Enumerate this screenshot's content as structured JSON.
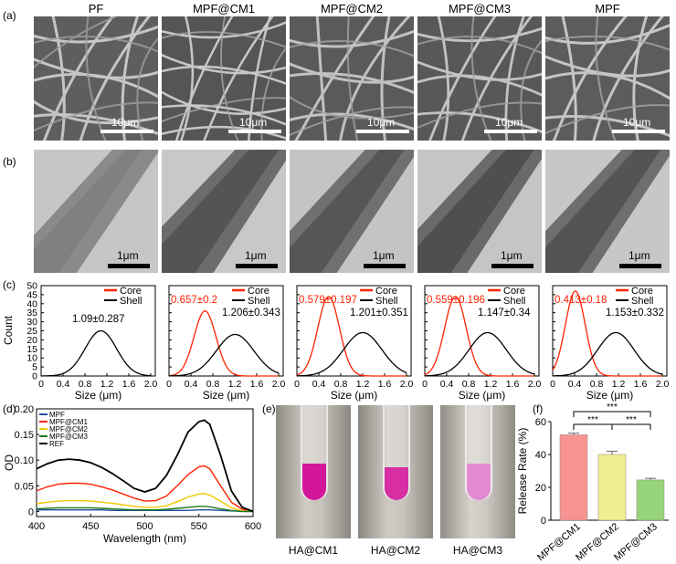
{
  "panel_labels": {
    "a": "(a)",
    "b": "(b)",
    "c": "(c)",
    "d": "(d)",
    "e": "(e)",
    "f": "(f)"
  },
  "samples": [
    "PF",
    "MPF@CM1",
    "MPF@CM2",
    "MPF@CM3",
    "MPF"
  ],
  "sem_scale": "10μm",
  "tem_scale": "1μm",
  "histograms": {
    "y_label": "Count",
    "x_label": "Size (μm)",
    "legend_core": "Core",
    "legend_shell": "Shell",
    "y_ticks": [
      "0",
      "5",
      "10",
      "15",
      "20",
      "25",
      "30",
      "35",
      "40",
      "45",
      "50"
    ],
    "x_ticks": [
      "0",
      "0.4",
      "0.8",
      "1.2",
      "1.6",
      "2.0"
    ],
    "panels": [
      {
        "core_label": "",
        "shell_label": "1.09±0.287"
      },
      {
        "core_label": "0.657±0.2",
        "shell_label": "1.206±0.343"
      },
      {
        "core_label": "0.579±0.197",
        "shell_label": "1.201±0.351"
      },
      {
        "core_label": "0.559±0.196",
        "shell_label": "1.147±0.34"
      },
      {
        "core_label": "0.413±0.18",
        "shell_label": "1.153±0.332"
      }
    ]
  },
  "colors": {
    "core": "#ff2200",
    "shell": "#000000",
    "annot_red": "#ff2200"
  },
  "chart_data": [
    {
      "type": "line",
      "title": "",
      "xlabel": "Size (μm)",
      "ylabel": "Count",
      "xlim": [
        0,
        2.0
      ],
      "ylim": [
        0,
        50
      ],
      "panels": [
        {
          "sample": "PF",
          "series": [
            {
              "name": "Shell",
              "mean": 1.09,
              "sd": 0.287,
              "peak": 25
            }
          ]
        },
        {
          "sample": "MPF@CM1",
          "series": [
            {
              "name": "Core",
              "mean": 0.657,
              "sd": 0.2,
              "peak": 36
            },
            {
              "name": "Shell",
              "mean": 1.206,
              "sd": 0.343,
              "peak": 23
            }
          ]
        },
        {
          "sample": "MPF@CM2",
          "series": [
            {
              "name": "Core",
              "mean": 0.579,
              "sd": 0.197,
              "peak": 44
            },
            {
              "name": "Shell",
              "mean": 1.201,
              "sd": 0.351,
              "peak": 24
            }
          ]
        },
        {
          "sample": "MPF@CM3",
          "series": [
            {
              "name": "Core",
              "mean": 0.559,
              "sd": 0.196,
              "peak": 44
            },
            {
              "name": "Shell",
              "mean": 1.147,
              "sd": 0.34,
              "peak": 24
            }
          ]
        },
        {
          "sample": "MPF",
          "series": [
            {
              "name": "Core",
              "mean": 0.413,
              "sd": 0.18,
              "peak": 47
            },
            {
              "name": "Shell",
              "mean": 1.153,
              "sd": 0.332,
              "peak": 24
            }
          ]
        }
      ]
    },
    {
      "type": "line",
      "title": "",
      "xlabel": "Wavelength (nm)",
      "ylabel": "OD",
      "xlim": [
        400,
        600
      ],
      "ylim": [
        -0.01,
        0.2
      ],
      "x_ticks": [
        "400",
        "450",
        "500",
        "550",
        "600"
      ],
      "y_ticks": [
        "0",
        "0.05",
        "0.10",
        "0.15",
        "0.20"
      ],
      "x": [
        400,
        410,
        420,
        430,
        440,
        450,
        460,
        470,
        480,
        490,
        500,
        510,
        520,
        530,
        540,
        550,
        555,
        560,
        570,
        580,
        590,
        600
      ],
      "series": [
        {
          "name": "MPF",
          "color": "#1f4e9e",
          "values": [
            0.003,
            0.003,
            0.003,
            0.003,
            0.003,
            0.003,
            0.003,
            0.002,
            0.002,
            0.002,
            0.002,
            0.002,
            0.002,
            0.002,
            0.002,
            0.003,
            0.003,
            0.003,
            0.002,
            0.001,
            0.0,
            0.0
          ]
        },
        {
          "name": "MPF@CM1",
          "color": "#ff2200",
          "values": [
            0.04,
            0.048,
            0.053,
            0.055,
            0.055,
            0.053,
            0.048,
            0.042,
            0.034,
            0.026,
            0.02,
            0.021,
            0.03,
            0.05,
            0.072,
            0.087,
            0.089,
            0.083,
            0.05,
            0.018,
            0.004,
            0.0
          ]
        },
        {
          "name": "MPF@CM2",
          "color": "#f0c800",
          "values": [
            0.015,
            0.018,
            0.02,
            0.021,
            0.021,
            0.02,
            0.018,
            0.016,
            0.013,
            0.01,
            0.008,
            0.008,
            0.011,
            0.019,
            0.028,
            0.034,
            0.035,
            0.032,
            0.02,
            0.007,
            0.001,
            0.0
          ]
        },
        {
          "name": "MPF@CM3",
          "color": "#1a7a1a",
          "values": [
            0.005,
            0.006,
            0.007,
            0.007,
            0.007,
            0.007,
            0.006,
            0.005,
            0.004,
            0.003,
            0.003,
            0.003,
            0.004,
            0.006,
            0.008,
            0.01,
            0.01,
            0.009,
            0.005,
            0.002,
            0.0,
            0.0
          ]
        },
        {
          "name": "REF",
          "color": "#000000",
          "values": [
            0.083,
            0.093,
            0.1,
            0.102,
            0.1,
            0.095,
            0.086,
            0.074,
            0.06,
            0.045,
            0.038,
            0.045,
            0.07,
            0.11,
            0.155,
            0.175,
            0.178,
            0.17,
            0.11,
            0.04,
            0.008,
            0.0
          ]
        }
      ],
      "legend": "top-left"
    },
    {
      "type": "bar",
      "title": "",
      "xlabel": "",
      "ylabel": "Release Rate (%)",
      "ylim": [
        0,
        60
      ],
      "y_ticks": [
        "0",
        "20",
        "40",
        "60"
      ],
      "categories": [
        "MPF@CM1",
        "MPF@CM2",
        "MPF@CM3"
      ],
      "values": [
        52,
        40,
        24.5
      ],
      "errors": [
        1.0,
        2.0,
        1.0
      ],
      "colors": [
        "#f79492",
        "#f2ef90",
        "#97d47a"
      ],
      "annotations": [
        "***",
        "***",
        "***"
      ]
    }
  ],
  "photos": {
    "captions": [
      "HA@CM1",
      "HA@CM2",
      "HA@CM3"
    ]
  }
}
